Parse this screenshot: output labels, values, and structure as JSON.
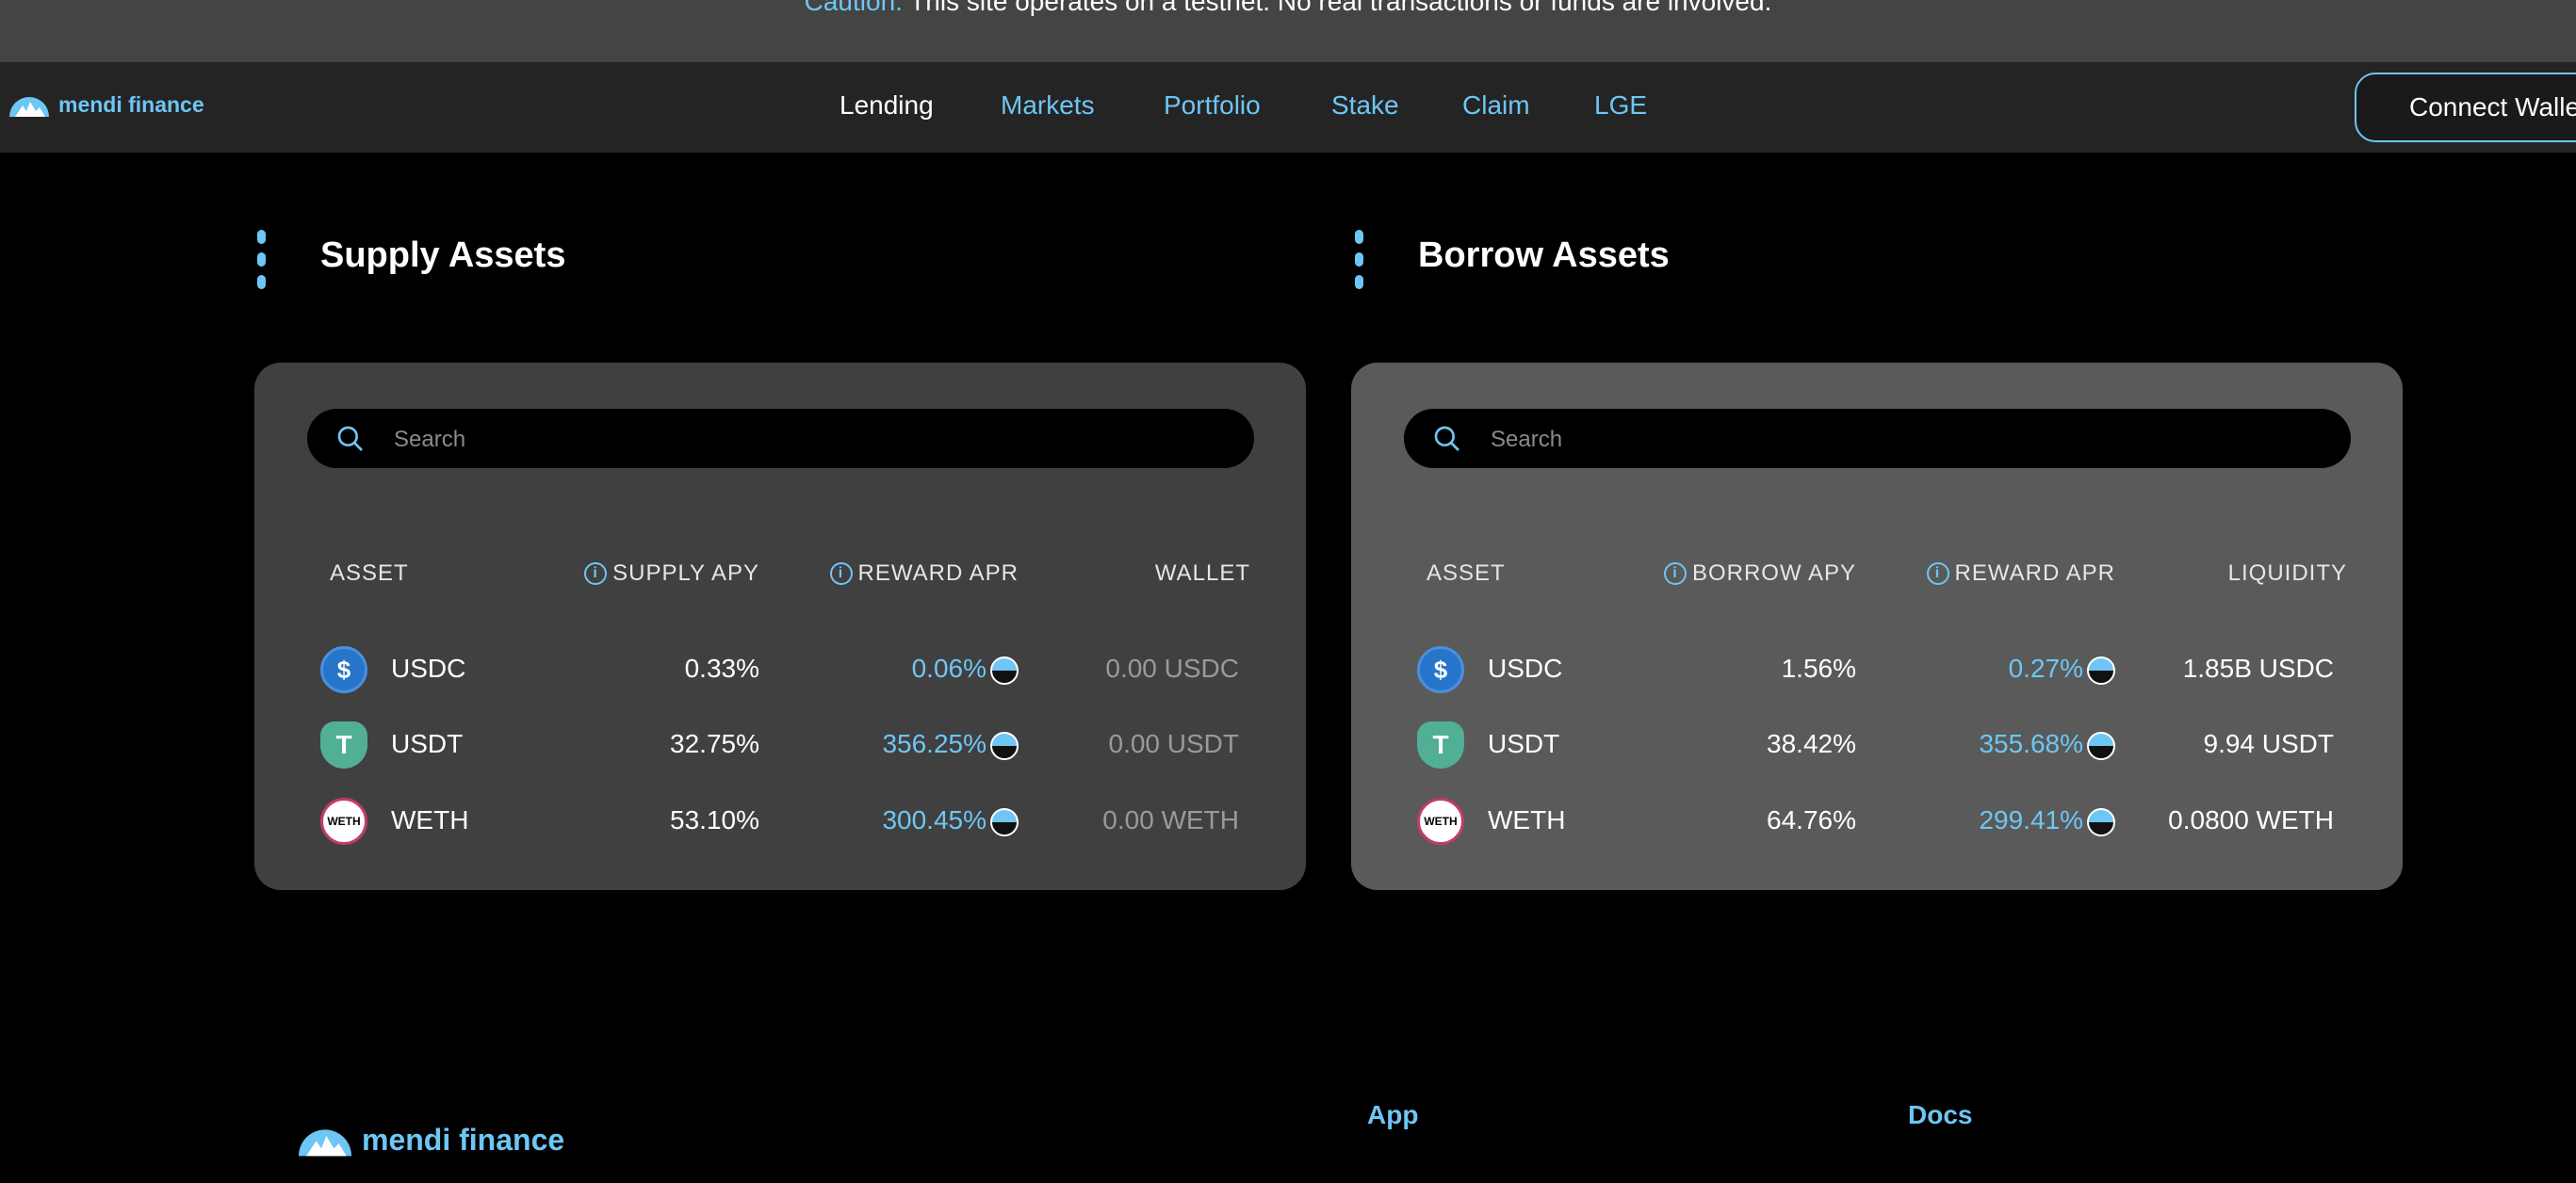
{
  "banner": {
    "label": "Caution:",
    "text": " This site operates on a testnet. No real transactions or funds are involved."
  },
  "brand": {
    "name": "mendi finance"
  },
  "nav": {
    "items": [
      {
        "label": "Lending",
        "active": true
      },
      {
        "label": "Markets"
      },
      {
        "label": "Portfolio"
      },
      {
        "label": "Stake"
      },
      {
        "label": "Claim"
      },
      {
        "label": "LGE"
      }
    ],
    "connect_label": "Connect Wallet"
  },
  "colors": {
    "accent": "#6ec6f5",
    "supply_panel": "#404040",
    "borrow_panel": "#5a5a5a"
  },
  "supply": {
    "title": "Supply Assets",
    "search_placeholder": "Search",
    "headers": [
      "ASSET",
      "SUPPLY APY",
      "REWARD APR",
      "WALLET"
    ],
    "rows": [
      {
        "asset": "USDC",
        "apy": "0.33%",
        "reward": "0.06%",
        "wallet": "0.00 USDC"
      },
      {
        "asset": "USDT",
        "apy": "32.75%",
        "reward": "356.25%",
        "wallet": "0.00 USDT"
      },
      {
        "asset": "WETH",
        "apy": "53.10%",
        "reward": "300.45%",
        "wallet": "0.00 WETH"
      }
    ]
  },
  "borrow": {
    "title": "Borrow Assets",
    "search_placeholder": "Search",
    "headers": [
      "ASSET",
      "BORROW APY",
      "REWARD APR",
      "LIQUIDITY"
    ],
    "rows": [
      {
        "asset": "USDC",
        "apy": "1.56%",
        "reward": "0.27%",
        "wallet": "1.85B USDC"
      },
      {
        "asset": "USDT",
        "apy": "38.42%",
        "reward": "355.68%",
        "wallet": "9.94 USDT"
      },
      {
        "asset": "WETH",
        "apy": "64.76%",
        "reward": "299.41%",
        "wallet": "0.0800 WETH"
      }
    ]
  },
  "footer": {
    "app_label": "App",
    "docs_label": "Docs"
  }
}
